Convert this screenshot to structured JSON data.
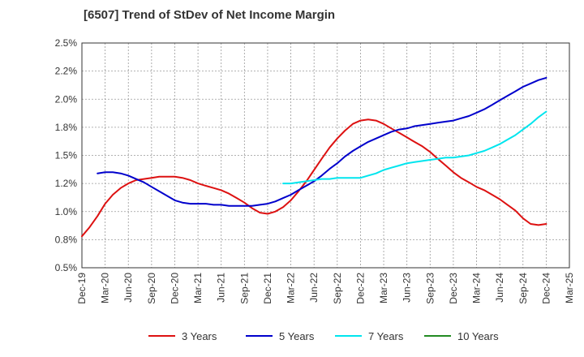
{
  "chart_data": {
    "type": "line",
    "title": "[6507]  Trend of StDev of Net Income Margin",
    "xlabel": "",
    "ylabel": "",
    "x": [
      "Dec-19",
      "Mar-20",
      "Jun-20",
      "Sep-20",
      "Dec-20",
      "Mar-21",
      "Jun-21",
      "Sep-21",
      "Dec-21",
      "Mar-22",
      "Jun-22",
      "Sep-22",
      "Dec-22",
      "Mar-23",
      "Jun-23",
      "Sep-23",
      "Dec-23",
      "Mar-24",
      "Jun-24",
      "Sep-24",
      "Dec-24",
      "Mar-25"
    ],
    "y_ticks": [
      "0.5%",
      "0.8%",
      "1.0%",
      "1.2%",
      "1.5%",
      "1.8%",
      "2.0%",
      "2.2%",
      "2.5%"
    ],
    "ylim": [
      0.5,
      2.5
    ],
    "grid": true,
    "legend_position": "bottom",
    "series": [
      {
        "name": "3 Years",
        "color": "#dd1111",
        "x": [
          0,
          0.33,
          0.67,
          1,
          1.33,
          1.67,
          2,
          2.33,
          2.67,
          3,
          3.33,
          3.67,
          4,
          4.33,
          4.67,
          5,
          5.33,
          5.67,
          6,
          6.33,
          6.67,
          7,
          7.33,
          7.67,
          8,
          8.33,
          8.67,
          9,
          9.33,
          9.67,
          10,
          10.33,
          10.67,
          11,
          11.33,
          11.67,
          12,
          12.33,
          12.67,
          13,
          13.33,
          13.67,
          14,
          14.33,
          14.67,
          15,
          15.33,
          15.67,
          16,
          16.33,
          16.67,
          17,
          17.33,
          17.67,
          18,
          18.33,
          18.67,
          19,
          19.33,
          19.67,
          20
        ],
        "values": [
          0.78,
          0.86,
          0.96,
          1.07,
          1.15,
          1.21,
          1.25,
          1.28,
          1.29,
          1.3,
          1.31,
          1.31,
          1.31,
          1.3,
          1.28,
          1.25,
          1.23,
          1.21,
          1.19,
          1.16,
          1.12,
          1.08,
          1.03,
          0.99,
          0.98,
          1.0,
          1.04,
          1.1,
          1.18,
          1.27,
          1.37,
          1.47,
          1.57,
          1.65,
          1.72,
          1.78,
          1.81,
          1.82,
          1.81,
          1.78,
          1.74,
          1.7,
          1.66,
          1.62,
          1.58,
          1.53,
          1.47,
          1.41,
          1.35,
          1.3,
          1.26,
          1.22,
          1.19,
          1.15,
          1.11,
          1.06,
          1.01,
          0.94,
          0.89,
          0.88,
          0.89
        ]
      },
      {
        "name": "5 Years",
        "color": "#0000cc",
        "x": [
          0.67,
          1,
          1.33,
          1.67,
          2,
          2.33,
          2.67,
          3,
          3.33,
          3.67,
          4,
          4.33,
          4.67,
          5,
          5.33,
          5.67,
          6,
          6.33,
          6.67,
          7,
          7.33,
          7.67,
          8,
          8.33,
          8.67,
          9,
          9.33,
          9.67,
          10,
          10.33,
          10.67,
          11,
          11.33,
          11.67,
          12,
          12.33,
          12.67,
          13,
          13.33,
          13.67,
          14,
          14.33,
          14.67,
          15,
          15.33,
          15.67,
          16,
          16.33,
          16.67,
          17,
          17.33,
          17.67,
          18,
          18.33,
          18.67,
          19,
          19.33,
          19.67,
          20
        ],
        "values": [
          1.34,
          1.35,
          1.35,
          1.34,
          1.32,
          1.29,
          1.26,
          1.22,
          1.18,
          1.14,
          1.1,
          1.08,
          1.07,
          1.07,
          1.07,
          1.06,
          1.06,
          1.05,
          1.05,
          1.05,
          1.05,
          1.06,
          1.07,
          1.09,
          1.12,
          1.15,
          1.19,
          1.23,
          1.27,
          1.32,
          1.38,
          1.43,
          1.49,
          1.54,
          1.58,
          1.62,
          1.65,
          1.68,
          1.71,
          1.73,
          1.74,
          1.76,
          1.77,
          1.78,
          1.79,
          1.8,
          1.81,
          1.83,
          1.85,
          1.88,
          1.91,
          1.95,
          1.99,
          2.03,
          2.07,
          2.11,
          2.14,
          2.17,
          2.19
        ]
      },
      {
        "name": "7 Years",
        "color": "#00e5ee",
        "x": [
          8.67,
          9,
          9.33,
          9.67,
          10,
          10.33,
          10.67,
          11,
          11.33,
          11.67,
          12,
          12.33,
          12.67,
          13,
          13.33,
          13.67,
          14,
          14.33,
          14.67,
          15,
          15.33,
          15.67,
          16,
          16.33,
          16.67,
          17,
          17.33,
          17.67,
          18,
          18.33,
          18.67,
          19,
          19.33,
          19.67,
          20
        ],
        "values": [
          1.25,
          1.25,
          1.26,
          1.27,
          1.28,
          1.29,
          1.29,
          1.3,
          1.3,
          1.3,
          1.3,
          1.32,
          1.34,
          1.37,
          1.39,
          1.41,
          1.43,
          1.44,
          1.45,
          1.46,
          1.47,
          1.48,
          1.48,
          1.49,
          1.5,
          1.52,
          1.54,
          1.57,
          1.6,
          1.64,
          1.68,
          1.73,
          1.78,
          1.84,
          1.89
        ]
      },
      {
        "name": "10 Years",
        "color": "#228b22",
        "x": [],
        "values": []
      }
    ]
  }
}
